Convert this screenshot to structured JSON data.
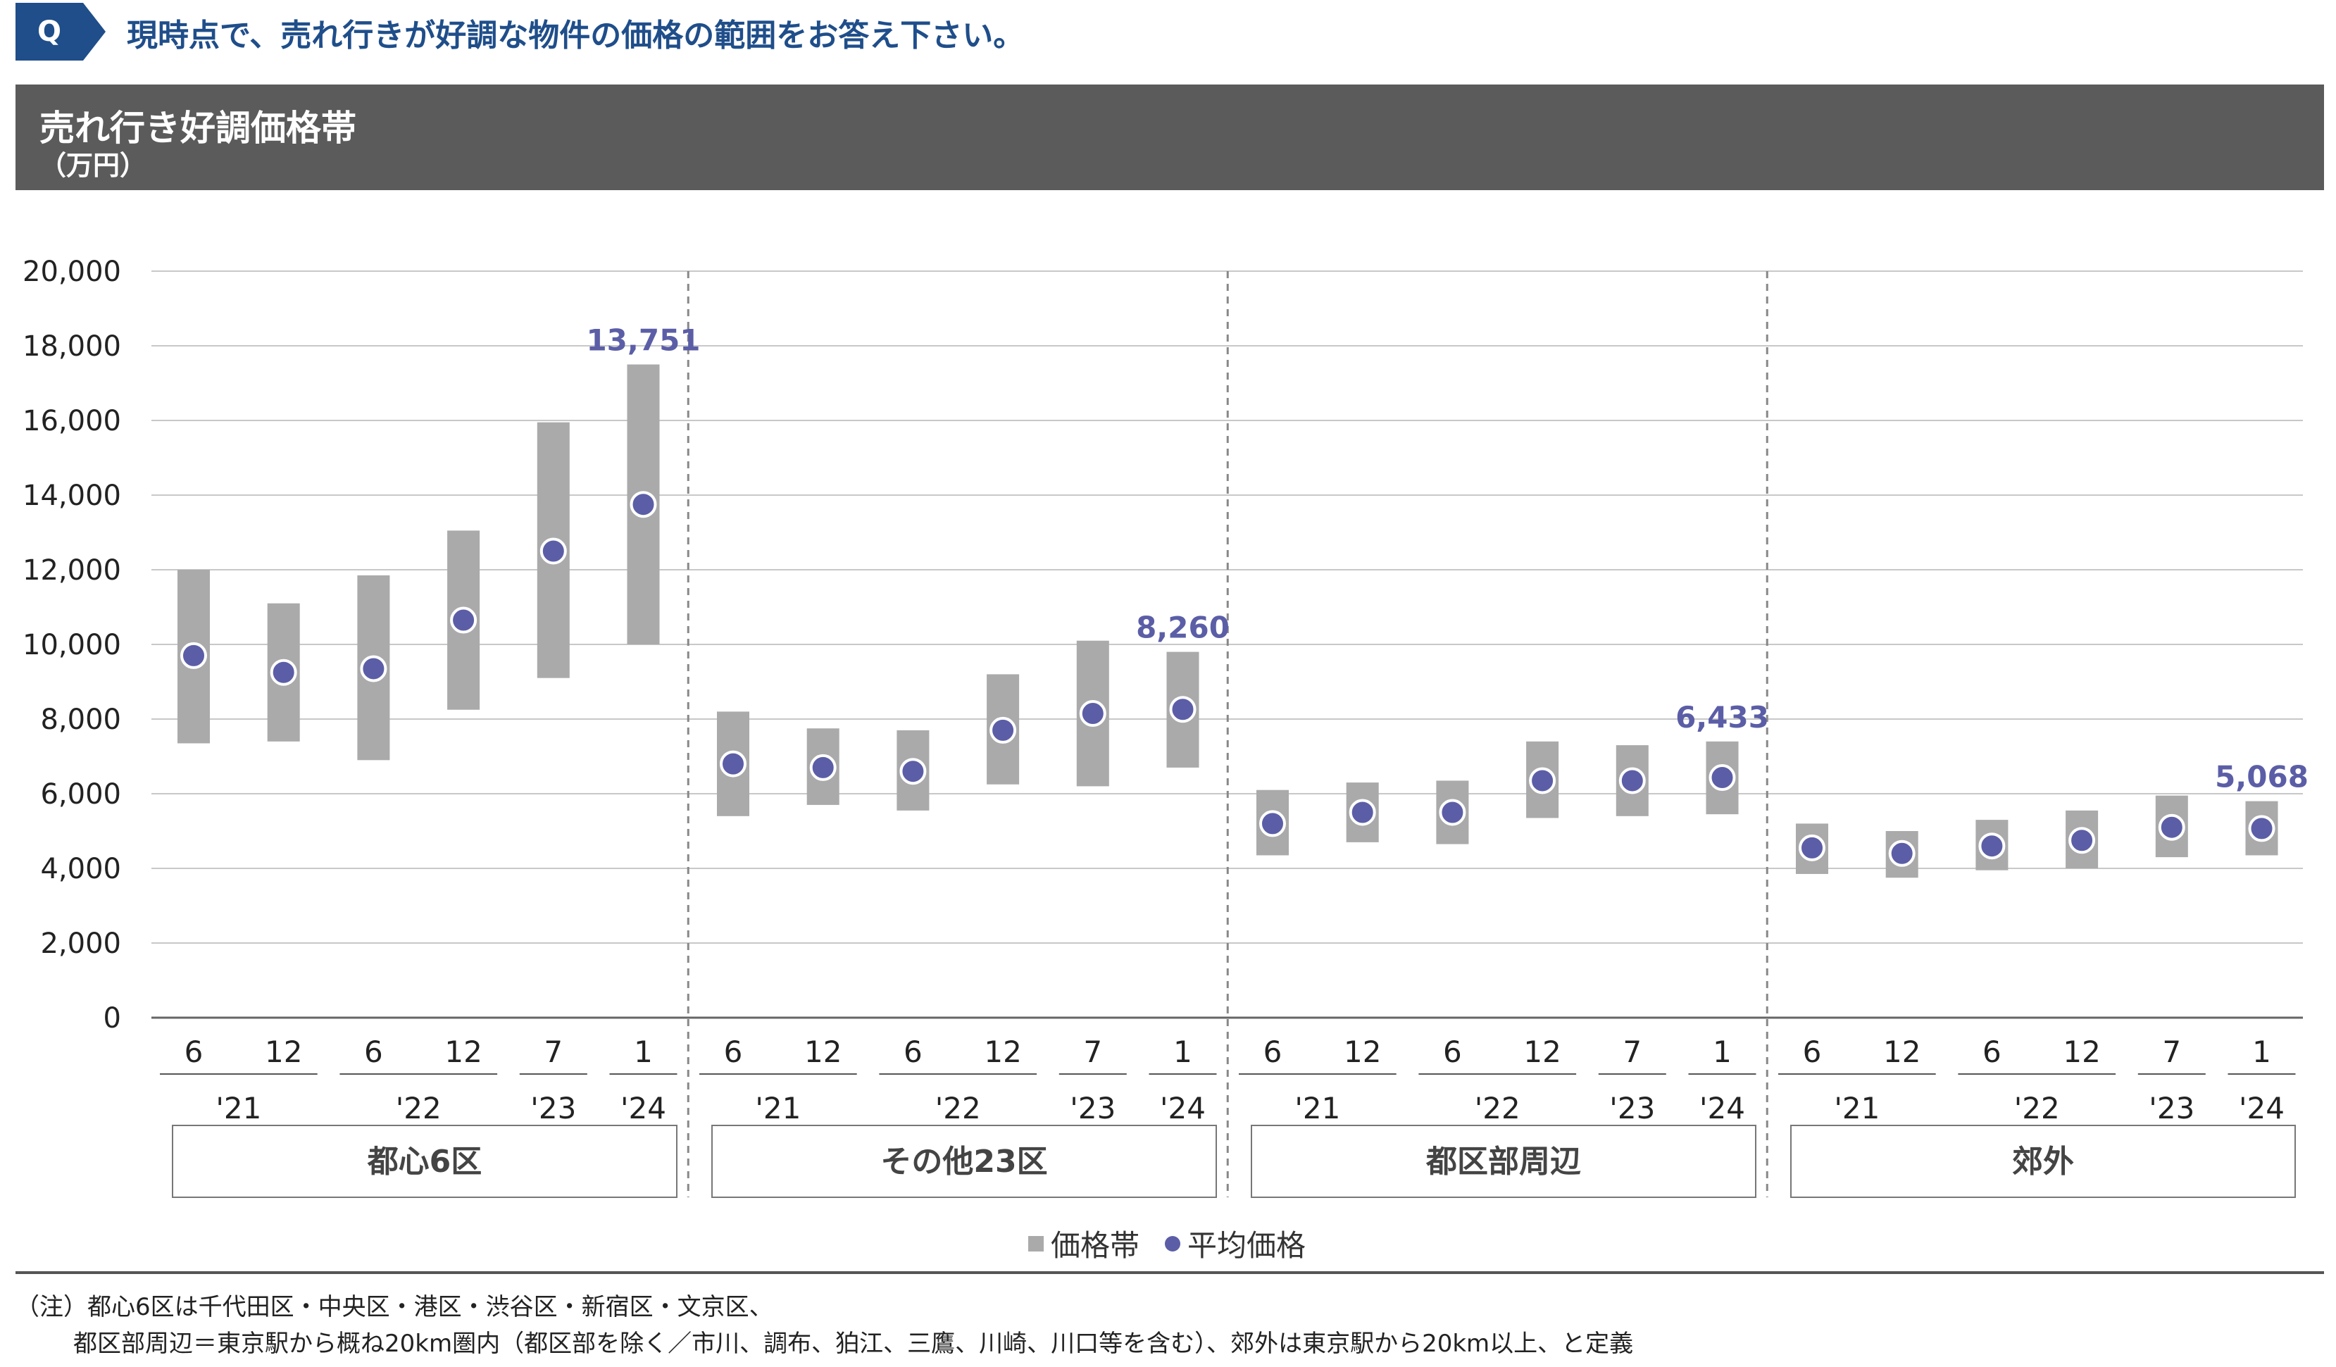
{
  "question": {
    "badge": "Q",
    "text": "現時点で、売れ行きが好調な物件の価格の範囲をお答え下さい。"
  },
  "header": {
    "title": "売れ行き好調価格帯",
    "unit": "（万円）"
  },
  "legend": {
    "band": "価格帯",
    "avg": "平均価格"
  },
  "notes": {
    "line1": "（注）都心6区は千代田区・中央区・港区・渋谷区・新宿区・文京区、",
    "line2": "都区部周辺＝東京駅から概ね20km圏内（都区部を除く／市川、調布、狛江、三鷹、川崎、川口等を含む）、郊外は東京駅から20km以上、と定義"
  },
  "colors": {
    "band": "#aaaaaa",
    "avg": "#5b5ea6",
    "callout": "#5b5ea6",
    "grid": "#c8c8c8"
  },
  "chart_data": {
    "type": "range-bar-with-points",
    "ylim": [
      0,
      20000
    ],
    "yticks": [
      "0",
      "2,000",
      "4,000",
      "6,000",
      "8,000",
      "10,000",
      "12,000",
      "14,000",
      "16,000",
      "18,000",
      "20,000"
    ],
    "month_labels": [
      "6",
      "12",
      "6",
      "12",
      "7",
      "1"
    ],
    "year_groups": [
      {
        "label": "'21",
        "span": 2
      },
      {
        "label": "'22",
        "span": 2
      },
      {
        "label": "'23",
        "span": 1
      },
      {
        "label": "'24",
        "span": 1
      }
    ],
    "groups": [
      {
        "name": "都心6区",
        "low": [
          7350,
          7400,
          6900,
          8250,
          9100,
          10000
        ],
        "high": [
          12000,
          11100,
          11850,
          13050,
          15950,
          17500
        ],
        "avg": [
          9700,
          9250,
          9350,
          10650,
          12500,
          13751
        ],
        "callout": "13,751"
      },
      {
        "name": "その他23区",
        "low": [
          5400,
          5700,
          5550,
          6250,
          6200,
          6700
        ],
        "high": [
          8200,
          7750,
          7700,
          9200,
          10100,
          9800
        ],
        "avg": [
          6800,
          6700,
          6600,
          7700,
          8150,
          8260
        ],
        "callout": "8,260"
      },
      {
        "name": "都区部周辺",
        "low": [
          4350,
          4700,
          4650,
          5350,
          5400,
          5450
        ],
        "high": [
          6100,
          6300,
          6350,
          7400,
          7300,
          7400
        ],
        "avg": [
          5200,
          5500,
          5500,
          6350,
          6350,
          6433
        ],
        "callout": "6,433"
      },
      {
        "name": "郊外",
        "low": [
          3850,
          3750,
          3950,
          4000,
          4300,
          4350
        ],
        "high": [
          5200,
          5000,
          5300,
          5550,
          5950,
          5800
        ],
        "avg": [
          4550,
          4400,
          4600,
          4750,
          5100,
          5068
        ],
        "callout": "5,068"
      }
    ]
  }
}
